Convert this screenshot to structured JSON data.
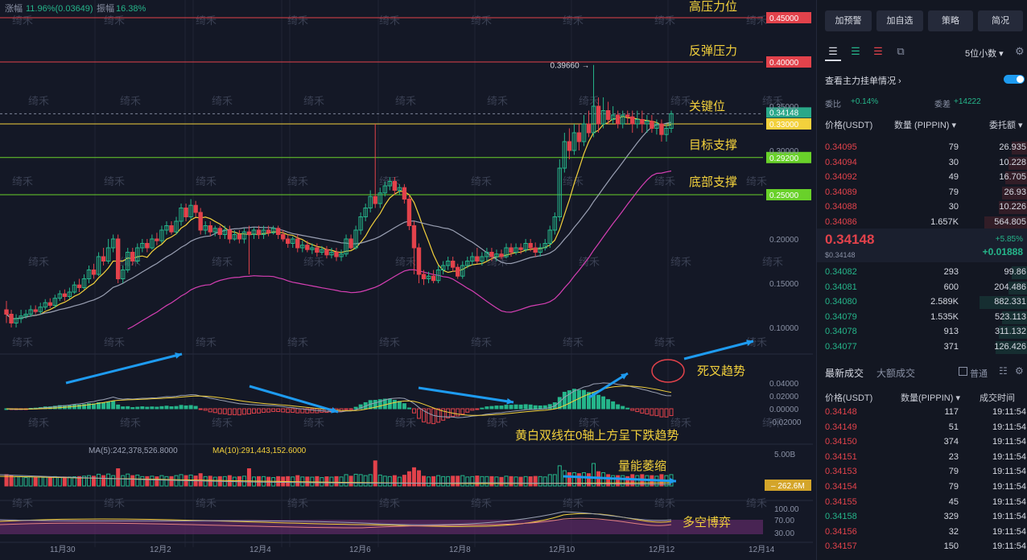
{
  "stats": {
    "change_label": "涨幅",
    "change_value": "11.96%(0.03649)",
    "amp_label": "振幅",
    "amp_value": "16.38%"
  },
  "watermark": "绮禾",
  "colors": {
    "bg": "#141826",
    "up": "#25b58a",
    "down": "#e2424b",
    "ma_yellow": "#f3d13c",
    "ma_white": "#9aa0b3",
    "ma_pink": "#d53fb3",
    "arrow": "#1e9bf0"
  },
  "chart_data": {
    "type": "candlestick",
    "price_axis": {
      "ylim": [
        0.07,
        0.47
      ],
      "ticks": [
        "0.45000",
        "0.40000",
        "0.35000",
        "0.30000",
        "0.25000",
        "0.20000",
        "0.15000",
        "0.10000"
      ]
    },
    "x_ticks": [
      "11月30",
      "12月2",
      "12月4",
      "12月6",
      "12月8",
      "12月10",
      "12月12",
      "12月14"
    ],
    "level_lines": [
      {
        "value": 0.45,
        "label": "0.45000",
        "note": "高压力位",
        "color": "#e2424b"
      },
      {
        "value": 0.4,
        "label": "0.40000",
        "note": "反弹压力",
        "color": "#e2424b"
      },
      {
        "value": 0.33,
        "label": "0.33000",
        "note": "关键位",
        "color": "#f3d13c"
      },
      {
        "value": 0.292,
        "label": "0.29200",
        "note": "目标支撑",
        "color": "#69d12a"
      },
      {
        "value": 0.25,
        "label": "0.25000",
        "note": "底部支撑",
        "color": "#69d12a"
      }
    ],
    "last_price": {
      "value": 0.34148,
      "label": "0.34148"
    },
    "high_marker": {
      "value": 0.3966,
      "label": "0.39660 →"
    },
    "candles": [
      [
        0.12,
        0.115,
        0.13,
        0.105
      ],
      [
        0.115,
        0.105,
        0.12,
        0.1
      ],
      [
        0.105,
        0.11,
        0.115,
        0.1
      ],
      [
        0.11,
        0.113,
        0.12,
        0.105
      ],
      [
        0.113,
        0.115,
        0.12,
        0.11
      ],
      [
        0.115,
        0.12,
        0.125,
        0.112
      ],
      [
        0.12,
        0.118,
        0.125,
        0.115
      ],
      [
        0.118,
        0.123,
        0.128,
        0.115
      ],
      [
        0.123,
        0.128,
        0.132,
        0.12
      ],
      [
        0.128,
        0.125,
        0.133,
        0.122
      ],
      [
        0.125,
        0.133,
        0.137,
        0.122
      ],
      [
        0.133,
        0.138,
        0.142,
        0.13
      ],
      [
        0.138,
        0.135,
        0.143,
        0.13
      ],
      [
        0.135,
        0.14,
        0.145,
        0.132
      ],
      [
        0.14,
        0.148,
        0.152,
        0.138
      ],
      [
        0.148,
        0.145,
        0.155,
        0.14
      ],
      [
        0.145,
        0.155,
        0.16,
        0.143
      ],
      [
        0.155,
        0.165,
        0.17,
        0.15
      ],
      [
        0.165,
        0.16,
        0.172,
        0.155
      ],
      [
        0.16,
        0.18,
        0.185,
        0.158
      ],
      [
        0.18,
        0.175,
        0.19,
        0.17
      ],
      [
        0.175,
        0.19,
        0.2,
        0.172
      ],
      [
        0.19,
        0.2,
        0.205,
        0.185
      ],
      [
        0.2,
        0.155,
        0.205,
        0.15
      ],
      [
        0.155,
        0.165,
        0.17,
        0.15
      ],
      [
        0.165,
        0.185,
        0.19,
        0.162
      ],
      [
        0.185,
        0.175,
        0.19,
        0.17
      ],
      [
        0.175,
        0.19,
        0.195,
        0.172
      ],
      [
        0.19,
        0.195,
        0.2,
        0.185
      ],
      [
        0.195,
        0.19,
        0.2,
        0.185
      ],
      [
        0.19,
        0.2,
        0.205,
        0.188
      ],
      [
        0.2,
        0.198,
        0.207,
        0.193
      ],
      [
        0.198,
        0.21,
        0.215,
        0.195
      ],
      [
        0.21,
        0.215,
        0.22,
        0.205
      ],
      [
        0.215,
        0.208,
        0.22,
        0.205
      ],
      [
        0.208,
        0.22,
        0.225,
        0.205
      ],
      [
        0.22,
        0.235,
        0.24,
        0.215
      ],
      [
        0.235,
        0.225,
        0.24,
        0.22
      ],
      [
        0.225,
        0.238,
        0.245,
        0.222
      ],
      [
        0.238,
        0.23,
        0.243,
        0.225
      ],
      [
        0.23,
        0.21,
        0.235,
        0.205
      ],
      [
        0.21,
        0.215,
        0.22,
        0.205
      ],
      [
        0.215,
        0.208,
        0.22,
        0.203
      ],
      [
        0.208,
        0.212,
        0.215,
        0.203
      ],
      [
        0.212,
        0.205,
        0.215,
        0.2
      ],
      [
        0.205,
        0.21,
        0.215,
        0.2
      ],
      [
        0.21,
        0.2,
        0.215,
        0.195
      ],
      [
        0.2,
        0.205,
        0.21,
        0.198
      ],
      [
        0.205,
        0.2,
        0.21,
        0.195
      ],
      [
        0.2,
        0.208,
        0.212,
        0.195
      ],
      [
        0.208,
        0.205,
        0.215,
        0.16
      ],
      [
        0.205,
        0.21,
        0.213,
        0.2
      ],
      [
        0.21,
        0.205,
        0.215,
        0.2
      ],
      [
        0.205,
        0.21,
        0.215,
        0.2
      ],
      [
        0.21,
        0.207,
        0.215,
        0.203
      ],
      [
        0.207,
        0.212,
        0.215,
        0.205
      ],
      [
        0.212,
        0.205,
        0.215,
        0.2
      ],
      [
        0.205,
        0.2,
        0.21,
        0.197
      ],
      [
        0.2,
        0.195,
        0.205,
        0.19
      ],
      [
        0.195,
        0.2,
        0.203,
        0.19
      ],
      [
        0.2,
        0.19,
        0.205,
        0.185
      ],
      [
        0.19,
        0.193,
        0.198,
        0.185
      ],
      [
        0.193,
        0.188,
        0.198,
        0.185
      ],
      [
        0.188,
        0.19,
        0.195,
        0.183
      ],
      [
        0.19,
        0.185,
        0.195,
        0.18
      ],
      [
        0.185,
        0.188,
        0.192,
        0.182
      ],
      [
        0.188,
        0.182,
        0.192,
        0.178
      ],
      [
        0.182,
        0.185,
        0.19,
        0.178
      ],
      [
        0.185,
        0.18,
        0.19,
        0.175
      ],
      [
        0.18,
        0.183,
        0.188,
        0.175
      ],
      [
        0.183,
        0.2,
        0.205,
        0.18
      ],
      [
        0.2,
        0.19,
        0.205,
        0.188
      ],
      [
        0.19,
        0.21,
        0.215,
        0.188
      ],
      [
        0.21,
        0.225,
        0.23,
        0.205
      ],
      [
        0.225,
        0.235,
        0.24,
        0.22
      ],
      [
        0.235,
        0.248,
        0.255,
        0.23
      ],
      [
        0.248,
        0.24,
        0.33,
        0.235
      ],
      [
        0.24,
        0.252,
        0.258,
        0.235
      ],
      [
        0.252,
        0.26,
        0.265,
        0.248
      ],
      [
        0.26,
        0.265,
        0.27,
        0.255
      ],
      [
        0.265,
        0.255,
        0.27,
        0.25
      ],
      [
        0.255,
        0.258,
        0.262,
        0.25
      ],
      [
        0.258,
        0.245,
        0.262,
        0.24
      ],
      [
        0.245,
        0.215,
        0.25,
        0.21
      ],
      [
        0.215,
        0.19,
        0.22,
        0.16
      ],
      [
        0.19,
        0.16,
        0.195,
        0.15
      ],
      [
        0.16,
        0.155,
        0.165,
        0.148
      ],
      [
        0.155,
        0.158,
        0.163,
        0.15
      ],
      [
        0.158,
        0.153,
        0.165,
        0.15
      ],
      [
        0.153,
        0.165,
        0.17,
        0.15
      ],
      [
        0.165,
        0.17,
        0.175,
        0.16
      ],
      [
        0.17,
        0.175,
        0.18,
        0.165
      ],
      [
        0.175,
        0.168,
        0.18,
        0.163
      ],
      [
        0.168,
        0.158,
        0.172,
        0.155
      ],
      [
        0.158,
        0.17,
        0.175,
        0.155
      ],
      [
        0.17,
        0.175,
        0.18,
        0.167
      ],
      [
        0.175,
        0.18,
        0.185,
        0.17
      ],
      [
        0.18,
        0.175,
        0.19,
        0.172
      ],
      [
        0.175,
        0.18,
        0.185,
        0.17
      ],
      [
        0.18,
        0.185,
        0.19,
        0.175
      ],
      [
        0.185,
        0.18,
        0.19,
        0.175
      ],
      [
        0.18,
        0.183,
        0.188,
        0.175
      ],
      [
        0.183,
        0.18,
        0.188,
        0.177
      ],
      [
        0.18,
        0.19,
        0.195,
        0.178
      ],
      [
        0.19,
        0.185,
        0.195,
        0.18
      ],
      [
        0.185,
        0.19,
        0.195,
        0.182
      ],
      [
        0.19,
        0.188,
        0.195,
        0.183
      ],
      [
        0.188,
        0.195,
        0.2,
        0.185
      ],
      [
        0.195,
        0.19,
        0.2,
        0.186
      ],
      [
        0.19,
        0.185,
        0.196,
        0.18
      ],
      [
        0.185,
        0.19,
        0.195,
        0.18
      ],
      [
        0.19,
        0.195,
        0.2,
        0.187
      ],
      [
        0.195,
        0.21,
        0.215,
        0.19
      ],
      [
        0.21,
        0.225,
        0.23,
        0.205
      ],
      [
        0.225,
        0.28,
        0.29,
        0.22
      ],
      [
        0.28,
        0.31,
        0.32,
        0.275
      ],
      [
        0.31,
        0.3,
        0.325,
        0.29
      ],
      [
        0.3,
        0.32,
        0.33,
        0.295
      ],
      [
        0.32,
        0.31,
        0.33,
        0.3
      ],
      [
        0.31,
        0.33,
        0.34,
        0.305
      ],
      [
        0.33,
        0.32,
        0.345,
        0.315
      ],
      [
        0.32,
        0.35,
        0.3966,
        0.315
      ],
      [
        0.35,
        0.33,
        0.36,
        0.32
      ],
      [
        0.33,
        0.345,
        0.36,
        0.325
      ],
      [
        0.345,
        0.335,
        0.355,
        0.33
      ],
      [
        0.335,
        0.34,
        0.35,
        0.33
      ],
      [
        0.34,
        0.33,
        0.345,
        0.325
      ],
      [
        0.33,
        0.34,
        0.345,
        0.325
      ],
      [
        0.34,
        0.338,
        0.345,
        0.33
      ],
      [
        0.338,
        0.33,
        0.345,
        0.32
      ],
      [
        0.33,
        0.335,
        0.345,
        0.325
      ],
      [
        0.335,
        0.33,
        0.345,
        0.32
      ],
      [
        0.33,
        0.333,
        0.34,
        0.32
      ],
      [
        0.333,
        0.325,
        0.34,
        0.32
      ],
      [
        0.325,
        0.33,
        0.335,
        0.318
      ],
      [
        0.33,
        0.318,
        0.335,
        0.31
      ],
      [
        0.318,
        0.325,
        0.33,
        0.31
      ],
      [
        0.325,
        0.34148,
        0.345,
        0.32
      ]
    ],
    "macd": {
      "ticks": [
        "0.04000",
        "0.02000",
        "0.00000",
        "-0.02000"
      ],
      "ylim": [
        -0.025,
        0.045
      ]
    },
    "volume": {
      "ma5_label": "MA(5):242,378,526.8000",
      "ma10_label": "MA(10):291,443,152.6000",
      "tick_top": "5.00B",
      "current_label": "262.6M"
    },
    "oscillator": {
      "ticks": [
        "100.00",
        "70.00",
        "30.00"
      ]
    },
    "annotations": [
      {
        "text": "黄白双线在0轴上方呈下跌趋势"
      },
      {
        "text": "死叉趋势"
      },
      {
        "text": "量能萎缩"
      },
      {
        "text": "多空博弈"
      }
    ]
  },
  "panel": {
    "buttons": [
      "加预警",
      "加自选",
      "策略",
      "简况"
    ],
    "decimals": "5位小数",
    "view_main": "查看主力挂单情况",
    "weibi_label": "委比",
    "weibi_value": "+0.14%",
    "weicha_label": "委差",
    "weicha_value": "+14222",
    "book_headers": [
      "价格(USDT)",
      "数量 (PIPPIN)",
      "委托额"
    ],
    "asks": [
      {
        "price": "0.34095",
        "qty": "79",
        "amt": "26.935"
      },
      {
        "price": "0.34094",
        "qty": "30",
        "amt": "10.228"
      },
      {
        "price": "0.34092",
        "qty": "49",
        "amt": "16.705"
      },
      {
        "price": "0.34089",
        "qty": "79",
        "amt": "26.93"
      },
      {
        "price": "0.34088",
        "qty": "30",
        "amt": "10.226"
      },
      {
        "price": "0.34086",
        "qty": "1.657K",
        "amt": "564.805"
      }
    ],
    "last_price": "0.34148",
    "last_usd": "$0.34148",
    "change_pct": "+5.85%",
    "change_abs": "+0.01888",
    "bids": [
      {
        "price": "0.34082",
        "qty": "293",
        "amt": "99.86"
      },
      {
        "price": "0.34081",
        "qty": "600",
        "amt": "204.486"
      },
      {
        "price": "0.34080",
        "qty": "2.589K",
        "amt": "882.331"
      },
      {
        "price": "0.34079",
        "qty": "1.535K",
        "amt": "523.113"
      },
      {
        "price": "0.34078",
        "qty": "913",
        "amt": "311.132"
      },
      {
        "price": "0.34077",
        "qty": "371",
        "amt": "126.426"
      }
    ],
    "trades_tab1": "最新成交",
    "trades_tab2": "大额成交",
    "normal_label": "普通",
    "trade_headers": [
      "价格(USDT)",
      "数量(PIPPIN)",
      "成交时间"
    ],
    "trades": [
      {
        "price": "0.34148",
        "qty": "117",
        "time": "19:11:54",
        "side": "down"
      },
      {
        "price": "0.34149",
        "qty": "51",
        "time": "19:11:54",
        "side": "down"
      },
      {
        "price": "0.34150",
        "qty": "374",
        "time": "19:11:54",
        "side": "down"
      },
      {
        "price": "0.34151",
        "qty": "23",
        "time": "19:11:54",
        "side": "down"
      },
      {
        "price": "0.34153",
        "qty": "79",
        "time": "19:11:54",
        "side": "down"
      },
      {
        "price": "0.34154",
        "qty": "79",
        "time": "19:11:54",
        "side": "down"
      },
      {
        "price": "0.34155",
        "qty": "45",
        "time": "19:11:54",
        "side": "down"
      },
      {
        "price": "0.34158",
        "qty": "329",
        "time": "19:11:54",
        "side": "up"
      },
      {
        "price": "0.34156",
        "qty": "32",
        "time": "19:11:54",
        "side": "down"
      },
      {
        "price": "0.34157",
        "qty": "150",
        "time": "19:11:54",
        "side": "down"
      }
    ]
  }
}
